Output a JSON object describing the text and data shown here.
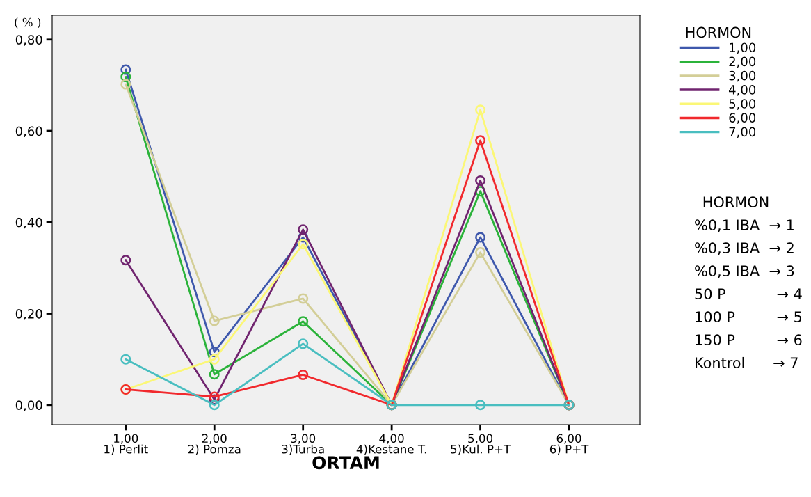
{
  "chart_data": {
    "type": "line",
    "ylabel": "( % )",
    "xlabel": "ORTAM",
    "legend_title": "HORMON",
    "legend": "right",
    "marker": "circle",
    "grid": false,
    "categories": [
      "1,00\n1) Perlit",
      "2,00\n2) Pomza",
      "3,00\n3)Turba",
      "4,00\n4)Kestane T.",
      "5,00\n5)Kul. P+T",
      "6,00\n6) P+T"
    ],
    "ylim": [
      -0.043,
      0.853
    ],
    "yticks": [
      {
        "value": 0,
        "label": "0,00"
      },
      {
        "value": 0.2,
        "label": "0,20"
      },
      {
        "value": 0.4,
        "label": "0,40"
      },
      {
        "value": 0.6,
        "label": "0,60"
      },
      {
        "value": 0.8,
        "label": "0,80"
      }
    ],
    "series": [
      {
        "name": "1,00",
        "color": "#3e58ac",
        "values": [
          0.734,
          0.116,
          0.367,
          0,
          0.367,
          0
        ]
      },
      {
        "name": "2,00",
        "color": "#2bb33a",
        "values": [
          0.718,
          0.067,
          0.183,
          0,
          0.468,
          0
        ]
      },
      {
        "name": "3,00",
        "color": "#d3ce97",
        "values": [
          0.702,
          0.184,
          0.233,
          0,
          0.334,
          0
        ]
      },
      {
        "name": "4,00",
        "color": "#70246f",
        "values": [
          0.317,
          0.012,
          0.384,
          0,
          0.491,
          0
        ]
      },
      {
        "name": "5,00",
        "color": "#fbf776",
        "values": [
          0.034,
          0.1,
          0.352,
          0,
          0.646,
          0
        ]
      },
      {
        "name": "6,00",
        "color": "#f1292d",
        "values": [
          0.034,
          0.018,
          0.066,
          0,
          0.579,
          0
        ]
      },
      {
        "name": "7,00",
        "color": "#49bec0",
        "values": [
          0.1,
          0,
          0.134,
          0,
          0,
          0
        ]
      }
    ],
    "annotations": [
      "HORMON",
      "%0,1 IBA  → 1",
      "%0,3 IBA  → 2",
      "%0,5 IBA  → 3",
      "50 P           → 4",
      "100 P         → 5",
      "150 P         → 6",
      "Kontrol      → 7"
    ]
  }
}
